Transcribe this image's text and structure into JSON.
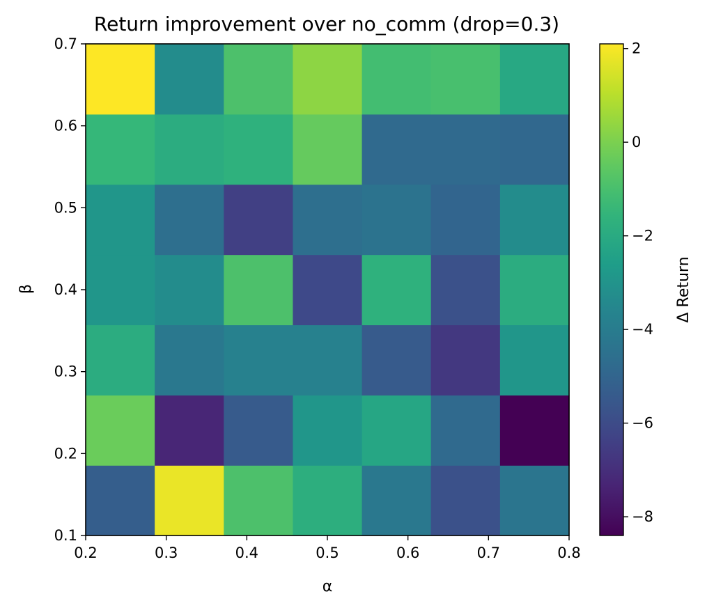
{
  "chart_data": {
    "type": "heatmap",
    "title": "Return improvement over no_comm (drop=0.3)",
    "xlabel": "α",
    "ylabel": "β",
    "xlim": [
      0.2,
      0.8
    ],
    "ylim": [
      0.1,
      0.7
    ],
    "x_ticks": [
      "0.2",
      "0.3",
      "0.4",
      "0.5",
      "0.6",
      "0.7",
      "0.8"
    ],
    "y_ticks": [
      "0.1",
      "0.2",
      "0.3",
      "0.4",
      "0.5",
      "0.6",
      "0.7"
    ],
    "rows_bottom_to_top": 7,
    "cols_left_to_right": 7,
    "values": [
      [
        -5.3,
        1.8,
        -0.9,
        -1.8,
        -4.2,
        -5.8,
        -4.3
      ],
      [
        -0.3,
        -7.3,
        -5.4,
        -2.9,
        -2.2,
        -4.8,
        -8.4
      ],
      [
        -1.9,
        -4.2,
        -3.8,
        -3.8,
        -5.4,
        -6.7,
        -2.9
      ],
      [
        -2.9,
        -3.3,
        -0.9,
        -6.1,
        -1.7,
        -5.8,
        -1.9
      ],
      [
        -2.9,
        -4.6,
        -6.4,
        -4.6,
        -4.4,
        -5.0,
        -3.3
      ],
      [
        -1.4,
        -1.9,
        -1.7,
        -0.4,
        -4.8,
        -4.8,
        -4.9
      ],
      [
        2.1,
        -3.3,
        -0.9,
        0.3,
        -1.1,
        -1.0,
        -2.1
      ]
    ],
    "colorbar": {
      "label": "Δ Return",
      "vmin": -8.4,
      "vmax": 2.1,
      "ticks": [
        "2",
        "0",
        "−2",
        "−4",
        "−6",
        "−8"
      ],
      "tick_values": [
        2,
        0,
        -2,
        -4,
        -6,
        -8
      ],
      "colormap": "viridis"
    },
    "grid": false
  }
}
